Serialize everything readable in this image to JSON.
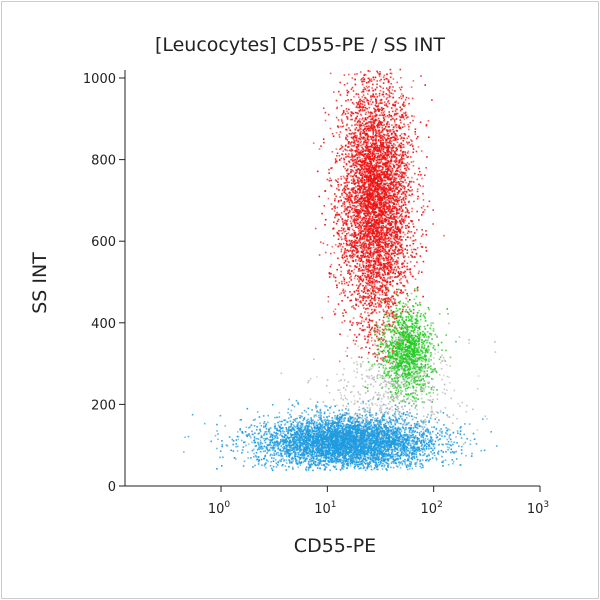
{
  "chart_data": {
    "type": "scatter",
    "title": "[Leucocytes] CD55-PE / SS INT",
    "xlabel": "CD55-PE",
    "ylabel": "SS INT",
    "x_scale": "log",
    "xlim": [
      0.125,
      1000
    ],
    "ylim": [
      0,
      1023
    ],
    "grid": false,
    "x_ticks": [
      {
        "value": 1,
        "base": "10",
        "exp": "0"
      },
      {
        "value": 10,
        "base": "10",
        "exp": "1"
      },
      {
        "value": 100,
        "base": "10",
        "exp": "2"
      },
      {
        "value": 1000,
        "base": "10",
        "exp": "3"
      }
    ],
    "y_ticks": [
      {
        "value": 0,
        "label": "0"
      },
      {
        "value": 200,
        "label": "200"
      },
      {
        "value": 400,
        "label": "400"
      },
      {
        "value": 600,
        "label": "600"
      },
      {
        "value": 800,
        "label": "800"
      },
      {
        "value": 1000,
        "label": "1000"
      }
    ],
    "populations": [
      {
        "color": "#ee1111",
        "center_x": 28,
        "center_y": 700,
        "spread_log_x": 0.17,
        "spread_y": 155,
        "count": 5200,
        "y_range": [
          300,
          1023
        ]
      },
      {
        "color": "#22cc22",
        "center_x": 55,
        "center_y": 330,
        "spread_log_x": 0.12,
        "spread_y": 55,
        "count": 1300,
        "y_range": [
          200,
          500
        ]
      },
      {
        "color": "#1f9be0",
        "center_x": 15,
        "center_y": 110,
        "spread_log_x": 0.42,
        "spread_y": 32,
        "count": 5200,
        "y_range": [
          40,
          220
        ]
      },
      {
        "color": "#b8b8b8",
        "center_x": 40,
        "center_y": 230,
        "spread_log_x": 0.35,
        "spread_y": 60,
        "count": 500,
        "y_range": [
          0,
          1023
        ]
      }
    ]
  }
}
